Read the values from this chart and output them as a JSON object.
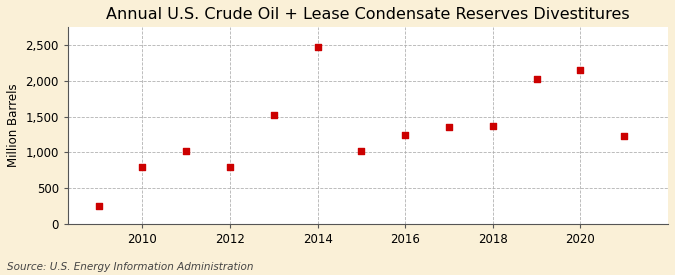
{
  "title": "Annual U.S. Crude Oil + Lease Condensate Reserves Divestitures",
  "ylabel": "Million Barrels",
  "source_text": "Source: U.S. Energy Information Administration",
  "years": [
    2009,
    2010,
    2011,
    2012,
    2013,
    2014,
    2015,
    2016,
    2017,
    2018,
    2019,
    2020,
    2021
  ],
  "values": [
    250,
    800,
    1025,
    800,
    1525,
    2475,
    1025,
    1250,
    1350,
    1375,
    2025,
    2150,
    1225
  ],
  "marker_color": "#CC0000",
  "marker": "s",
  "marker_size": 4,
  "background_color": "#FAF0D7",
  "plot_background": "#FFFFFF",
  "grid_color": "#AAAAAA",
  "ylim": [
    0,
    2750
  ],
  "yticks": [
    0,
    500,
    1000,
    1500,
    2000,
    2500
  ],
  "xlim": [
    2008.3,
    2022.0
  ],
  "xticks": [
    2010,
    2012,
    2014,
    2016,
    2018,
    2020
  ],
  "title_fontsize": 11.5,
  "ylabel_fontsize": 8.5,
  "tick_fontsize": 8.5,
  "source_fontsize": 7.5
}
